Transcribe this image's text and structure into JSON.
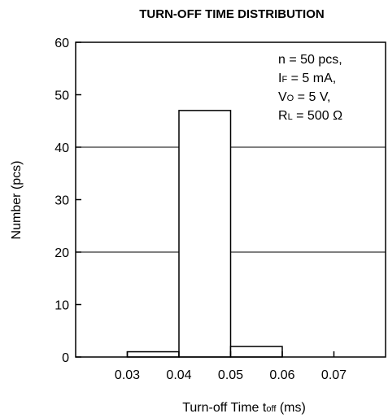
{
  "chart_data": {
    "type": "bar",
    "title": "TURN-OFF TIME DISTRIBUTION",
    "xlabel": {
      "main": "Turn-off Time ",
      "symbol": "t",
      "symbol_sub": "off",
      "unit": " (ms)"
    },
    "ylabel": "Number  (pcs)",
    "xlim": [
      0.02,
      0.08
    ],
    "ylim": [
      0,
      60
    ],
    "x_ticks": [
      {
        "value": 0.03,
        "label": "0.03"
      },
      {
        "value": 0.04,
        "label": "0.04"
      },
      {
        "value": 0.05,
        "label": "0.05"
      },
      {
        "value": 0.06,
        "label": "0.06"
      },
      {
        "value": 0.07,
        "label": "0.07"
      }
    ],
    "y_ticks": [
      {
        "value": 0,
        "label": "0"
      },
      {
        "value": 10,
        "label": "10"
      },
      {
        "value": 20,
        "label": "20"
      },
      {
        "value": 30,
        "label": "30"
      },
      {
        "value": 40,
        "label": "40"
      },
      {
        "value": 50,
        "label": "50"
      },
      {
        "value": 60,
        "label": "60"
      }
    ],
    "gridlines_y": [
      20,
      40
    ],
    "bins": [
      {
        "start": 0.03,
        "end": 0.04,
        "count": 1
      },
      {
        "start": 0.04,
        "end": 0.05,
        "count": 47
      },
      {
        "start": 0.05,
        "end": 0.06,
        "count": 2
      }
    ],
    "annotation": [
      {
        "main": "n = 50 pcs,",
        "sub": "",
        "after": ""
      },
      {
        "main": "I",
        "sub": "F",
        "after": " = 5 mA,"
      },
      {
        "main": "V",
        "sub": "O",
        "after": " = 5 V,"
      },
      {
        "main": "R",
        "sub": "L",
        "after": " = 500 Ω"
      }
    ],
    "grid": true,
    "legend": "none"
  }
}
